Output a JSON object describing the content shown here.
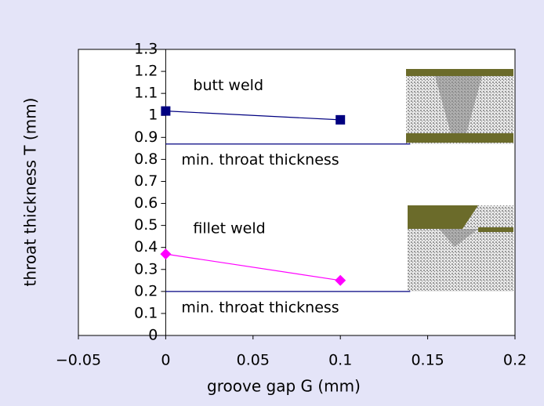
{
  "chart_data": {
    "type": "line",
    "x_label": "groove gap G (mm)",
    "y_label": "throat thickness T (mm)",
    "xlim": [
      -0.05,
      0.2
    ],
    "ylim": [
      0,
      1.3
    ],
    "xticks": [
      {
        "value": -0.05,
        "label": "−0.05"
      },
      0,
      0.05,
      0.1,
      0.15,
      0.2
    ],
    "yticks": [
      0,
      0.1,
      0.2,
      0.3,
      0.4,
      0.5,
      0.6,
      0.7,
      0.8,
      0.9,
      1,
      1.1,
      1.2,
      1.3
    ],
    "series": [
      {
        "name": "butt weld",
        "color": "#000080",
        "marker": "square",
        "x": [
          0,
          0.1
        ],
        "values": [
          1.02,
          0.98
        ]
      },
      {
        "name": "min. throat thickness",
        "color": "#000080",
        "marker": "none",
        "x": [
          0,
          0.14
        ],
        "values": [
          0.87,
          0.87
        ]
      },
      {
        "name": "fillet weld",
        "color": "#ff00ff",
        "marker": "diamond",
        "x": [
          0,
          0.1
        ],
        "values": [
          0.37,
          0.25
        ]
      },
      {
        "name": "min. throat thickness",
        "color": "#000080",
        "marker": "none",
        "x": [
          0,
          0.14
        ],
        "values": [
          0.2,
          0.2
        ]
      }
    ]
  }
}
